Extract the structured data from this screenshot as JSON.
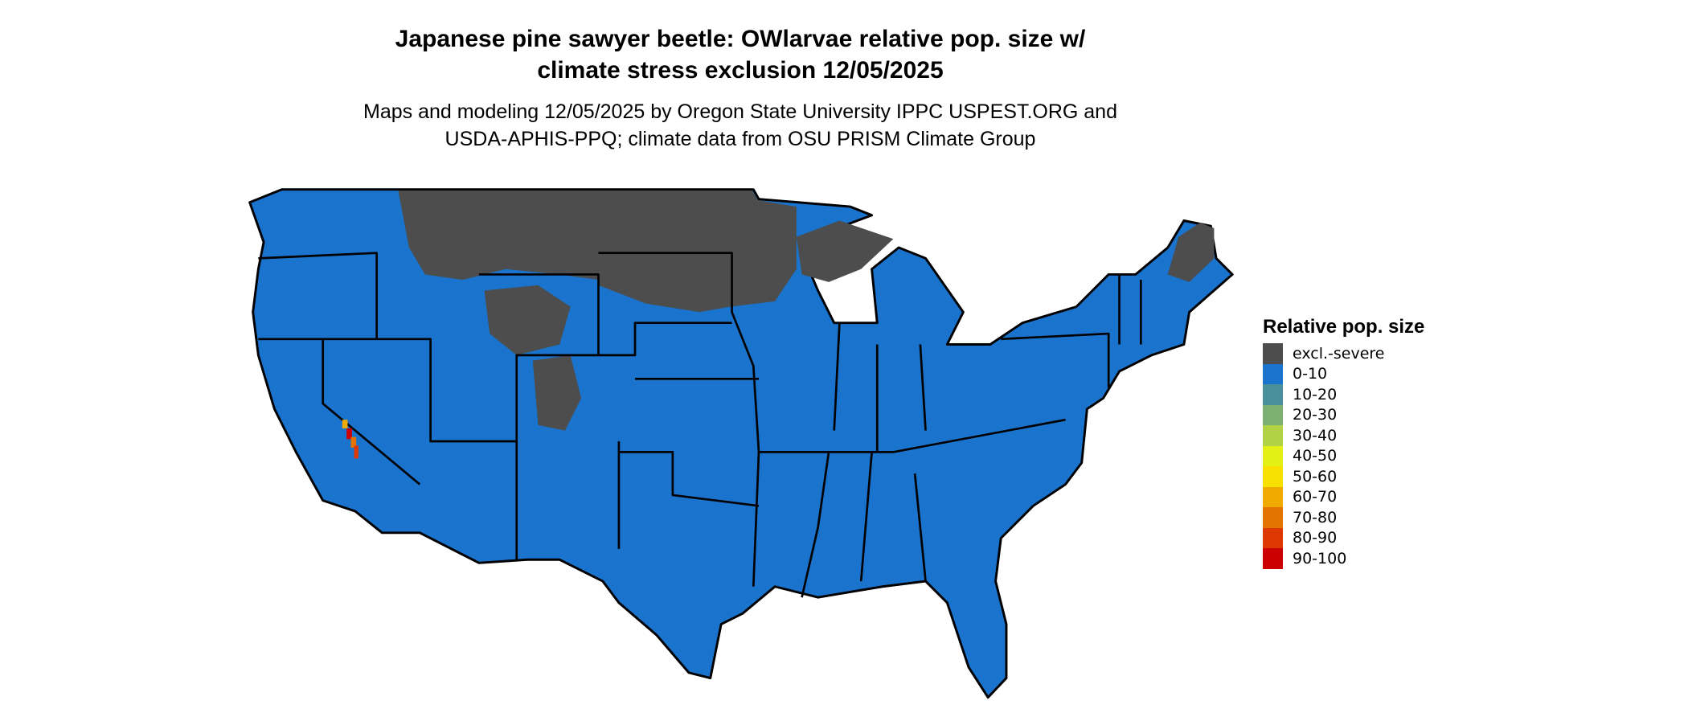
{
  "title": "Japanese pine sawyer beetle: OWlarvae relative pop. size w/ climate stress exclusion 12/05/2025",
  "title_lines": [
    "Japanese pine sawyer beetle: OWlarvae relative pop. size w/",
    "climate stress exclusion 12/05/2025"
  ],
  "subtitle_lines": [
    "Maps and modeling 12/05/2025 by Oregon State University IPPC USPEST.ORG and",
    "USDA-APHIS-PPQ; climate data from OSU PRISM Climate Group"
  ],
  "map": {
    "region": "Contiguous United States",
    "dominant_class": "0-10",
    "excluded_class": "excl.-severe"
  },
  "legend": {
    "title": "Relative pop. size",
    "items": [
      {
        "label": "excl.-severe",
        "color": "#4d4d4d"
      },
      {
        "label": "0-10",
        "color": "#1a73cc"
      },
      {
        "label": "10-20",
        "color": "#4a909c"
      },
      {
        "label": "20-30",
        "color": "#7cb072"
      },
      {
        "label": "30-40",
        "color": "#b2d246"
      },
      {
        "label": "40-50",
        "color": "#e4ef16"
      },
      {
        "label": "50-60",
        "color": "#f8e000"
      },
      {
        "label": "60-70",
        "color": "#f0aa00"
      },
      {
        "label": "70-80",
        "color": "#e47400"
      },
      {
        "label": "80-90",
        "color": "#dc3800"
      },
      {
        "label": "90-100",
        "color": "#cc0000"
      }
    ]
  }
}
